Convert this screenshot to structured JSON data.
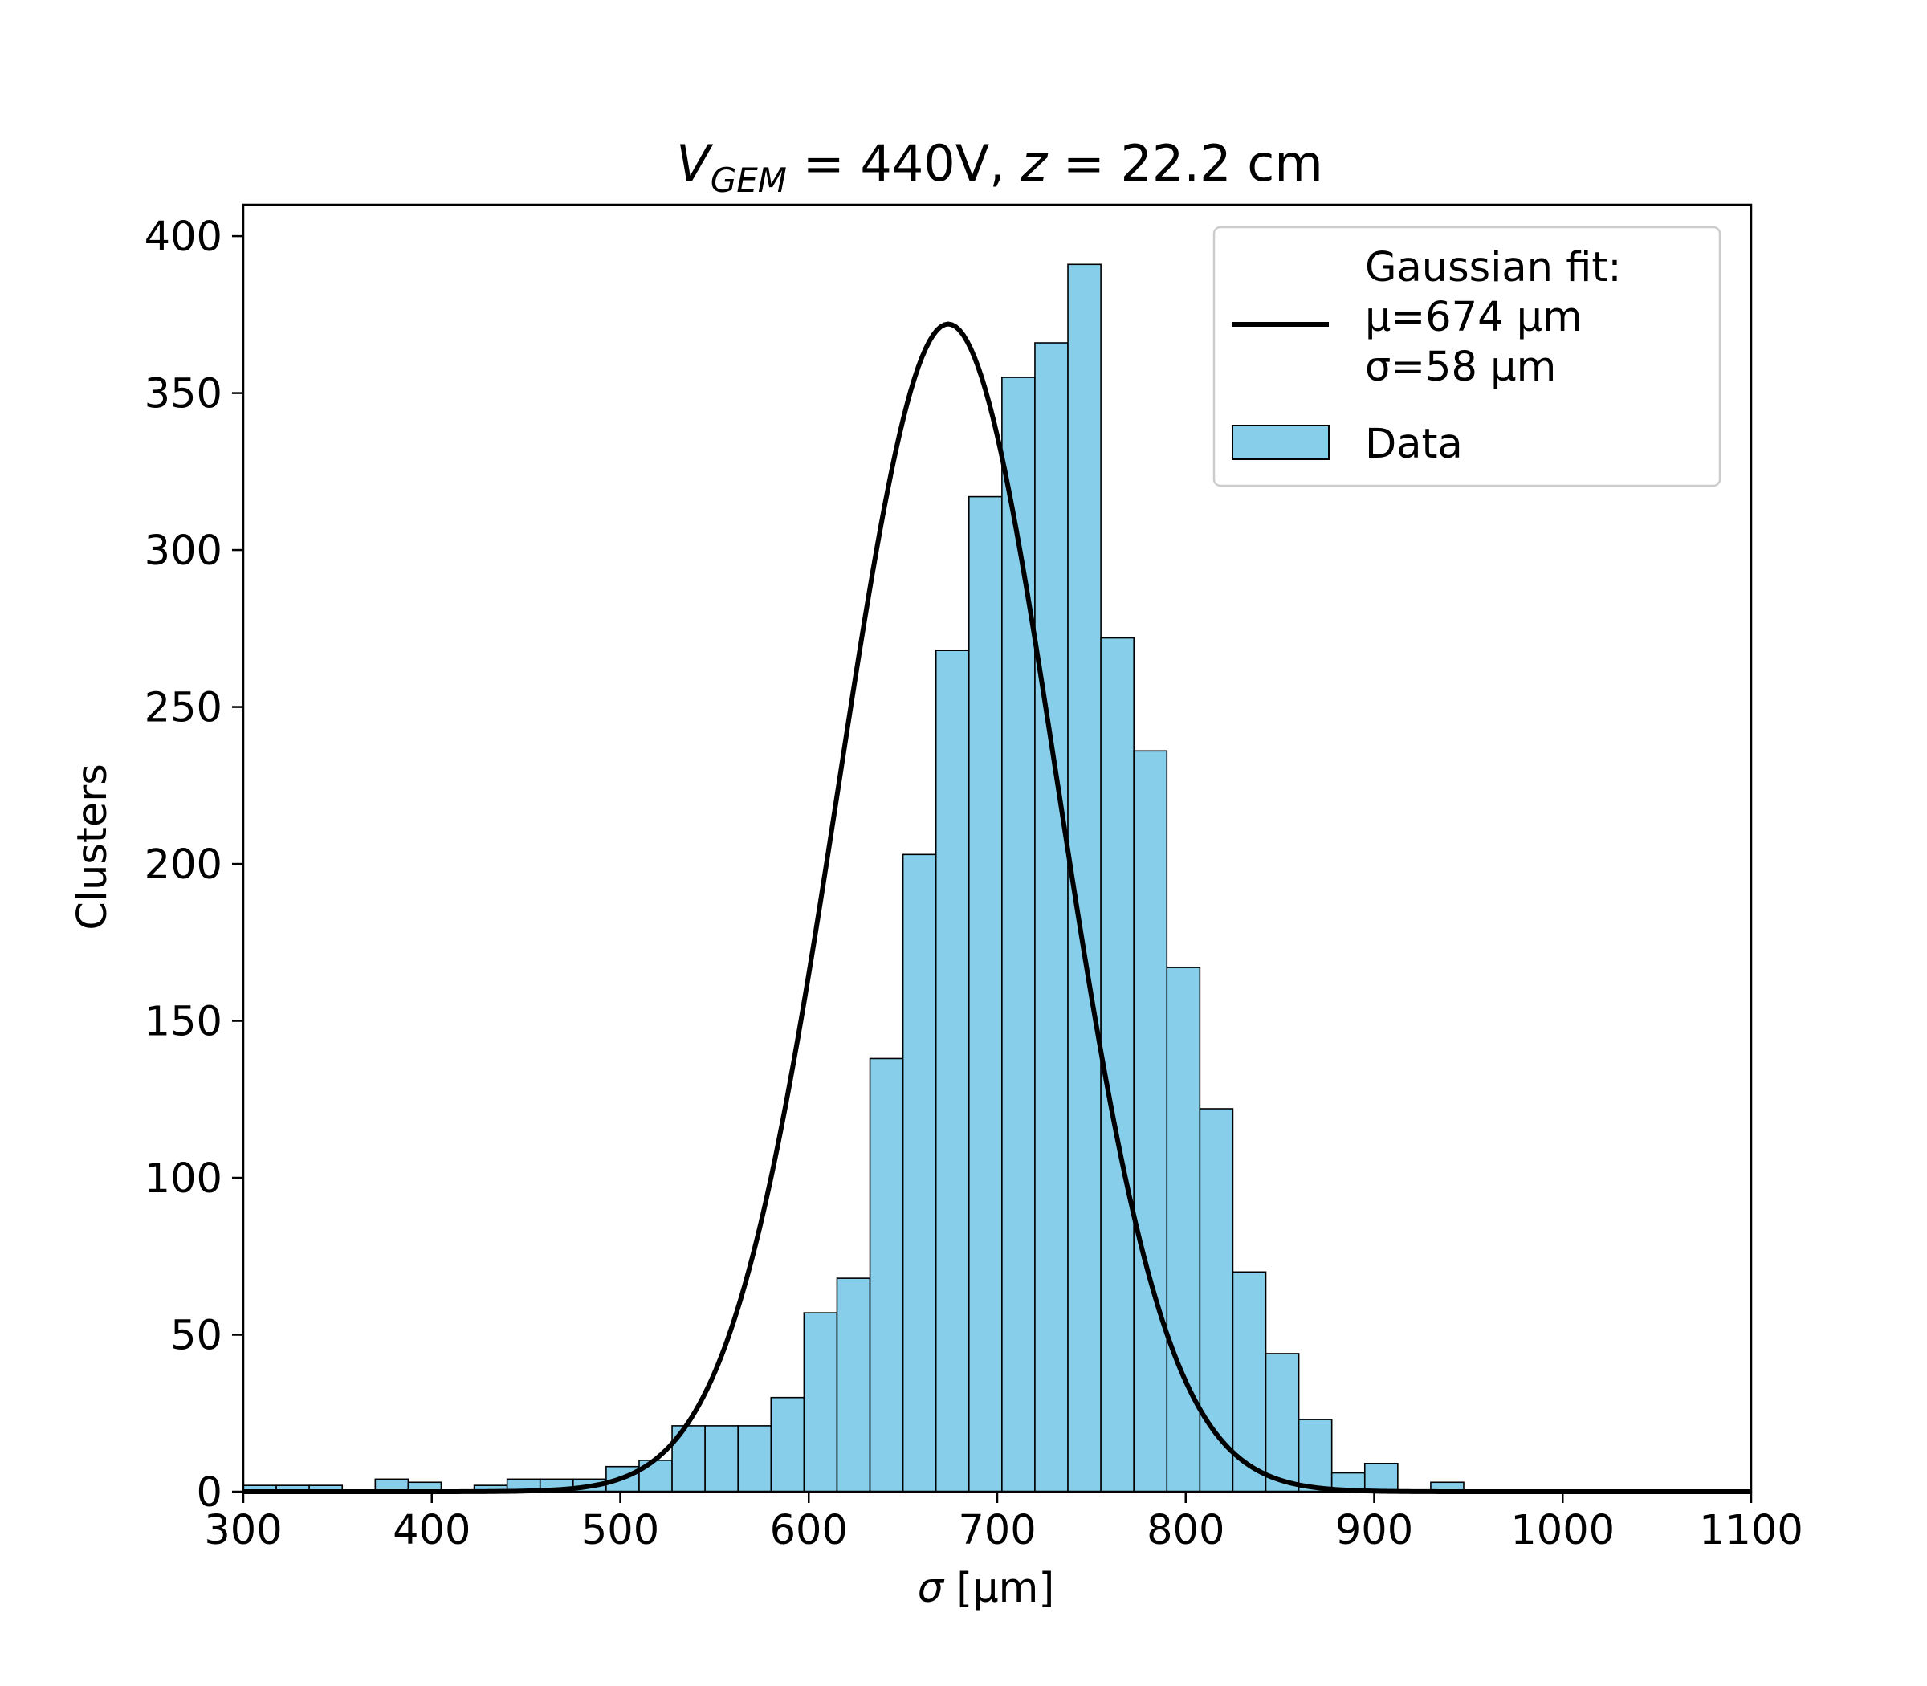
{
  "chart_data": {
    "type": "bar",
    "subtype": "histogram",
    "title_parts": {
      "v": "V",
      "sub": "GEM",
      "rest": " = 440V, ",
      "z": "z",
      "rest2": " = 22.2 cm"
    },
    "xlabel_parts": {
      "sym": "σ",
      "rest": " [μm]"
    },
    "ylabel": "Clusters",
    "xlim": [
      300,
      1100
    ],
    "ylim": [
      0,
      410
    ],
    "xticks": [
      300,
      400,
      500,
      600,
      700,
      800,
      900,
      1000,
      1100
    ],
    "yticks": [
      0,
      50,
      100,
      150,
      200,
      250,
      300,
      350,
      400
    ],
    "bin_edges": [
      300,
      317.5,
      335,
      352.5,
      370,
      387.5,
      405,
      422.5,
      440,
      457.5,
      475,
      492.5,
      510,
      527.5,
      545,
      562.5,
      580,
      597.5,
      615,
      632.5,
      650,
      667.5,
      685,
      702.5,
      720,
      737.5,
      755,
      772.5,
      790,
      807.5,
      825,
      842.5,
      860,
      877.5,
      895,
      912.5,
      930,
      947.5,
      965,
      982.5,
      1000,
      1017.5,
      1035,
      1052.5,
      1070,
      1087.5,
      1100
    ],
    "counts": [
      2,
      2,
      2,
      0,
      4,
      3,
      0,
      2,
      4,
      4,
      4,
      8,
      10,
      21,
      21,
      21,
      30,
      57,
      68,
      138,
      203,
      268,
      317,
      355,
      366,
      391,
      272,
      236,
      167,
      122,
      70,
      44,
      23,
      6,
      9,
      0,
      3,
      0,
      0,
      0,
      0,
      0,
      0,
      0,
      0,
      0
    ],
    "fit": {
      "type": "gaussian",
      "mu": 674,
      "sigma": 58,
      "amplitude": 372
    },
    "colors": {
      "bars": "#87ceeb",
      "bar_edge": "#000000",
      "fit_line": "#000000"
    },
    "legend": {
      "placement": "top-right",
      "fit_label": [
        "Gaussian fit:",
        "μ=674 μm",
        "σ=58 μm"
      ],
      "data_label": "Data"
    },
    "grid": false
  }
}
